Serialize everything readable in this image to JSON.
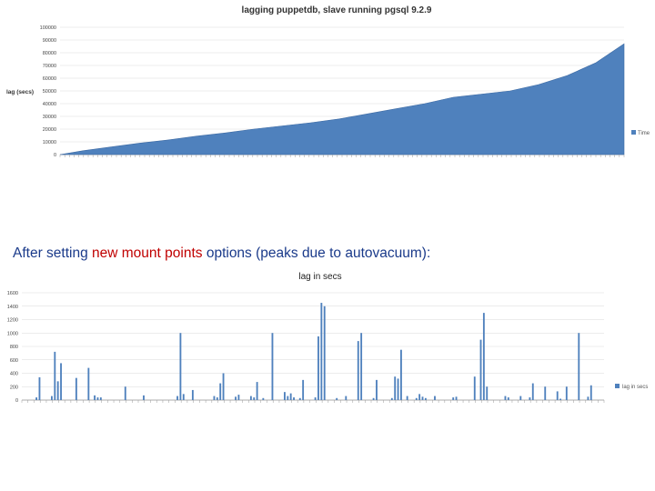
{
  "caption": {
    "part1": "After setting ",
    "highlight": "new mount points",
    "part2": " options (peaks due to autovacuum):"
  },
  "chart_data": [
    {
      "type": "area",
      "title": "lagging puppetdb, slave running pgsql 9.2.9",
      "ylabel": "lag (secs)",
      "ylim": [
        0,
        100000
      ],
      "yticks": [
        0,
        10000,
        20000,
        30000,
        40000,
        50000,
        60000,
        70000,
        80000,
        90000,
        100000
      ],
      "grid": true,
      "legend_position": "right",
      "color": "#4f81bd",
      "series": [
        {
          "name": "Time",
          "x": [
            1,
            5,
            10,
            15,
            20,
            25,
            30,
            35,
            40,
            45,
            50,
            55,
            60,
            65,
            70,
            75,
            80,
            85,
            90,
            95,
            100
          ],
          "values": [
            0,
            3000,
            6000,
            9000,
            11500,
            14500,
            17000,
            20000,
            22500,
            25000,
            28000,
            32000,
            36000,
            40000,
            45000,
            47500,
            50000,
            55000,
            62000,
            72000,
            87000
          ]
        }
      ]
    },
    {
      "type": "bar",
      "title": "lag in secs",
      "ylim": [
        0,
        1600
      ],
      "yticks": [
        0,
        200,
        400,
        600,
        800,
        1000,
        1200,
        1400,
        1600
      ],
      "grid": true,
      "legend_position": "right",
      "color": "#4f81bd",
      "series": [
        {
          "name": "lag in secs",
          "x": [
            5,
            6,
            10,
            11,
            12,
            13,
            18,
            22,
            24,
            25,
            26,
            34,
            40,
            51,
            52,
            53,
            56,
            63,
            64,
            65,
            66,
            70,
            71,
            75,
            76,
            77,
            79,
            82,
            86,
            87,
            88,
            89,
            91,
            92,
            96,
            97,
            98,
            99,
            103,
            106,
            110,
            111,
            115,
            116,
            121,
            122,
            123,
            124,
            126,
            129,
            130,
            131,
            132,
            135,
            141,
            142,
            148,
            150,
            151,
            152,
            158,
            159,
            163,
            166,
            167,
            171,
            175,
            176,
            178,
            182,
            185,
            186
          ],
          "values": [
            40,
            340,
            60,
            720,
            280,
            550,
            330,
            480,
            70,
            40,
            40,
            200,
            70,
            60,
            1000,
            90,
            150,
            60,
            40,
            250,
            400,
            50,
            80,
            60,
            40,
            270,
            30,
            1000,
            120,
            60,
            100,
            40,
            30,
            300,
            40,
            950,
            1450,
            1400,
            30,
            60,
            880,
            1000,
            30,
            300,
            30,
            350,
            320,
            750,
            60,
            30,
            90,
            50,
            30,
            60,
            40,
            50,
            350,
            900,
            1300,
            200,
            60,
            40,
            60,
            40,
            250,
            200,
            130,
            20,
            200,
            1000,
            50,
            220
          ]
        }
      ]
    }
  ]
}
